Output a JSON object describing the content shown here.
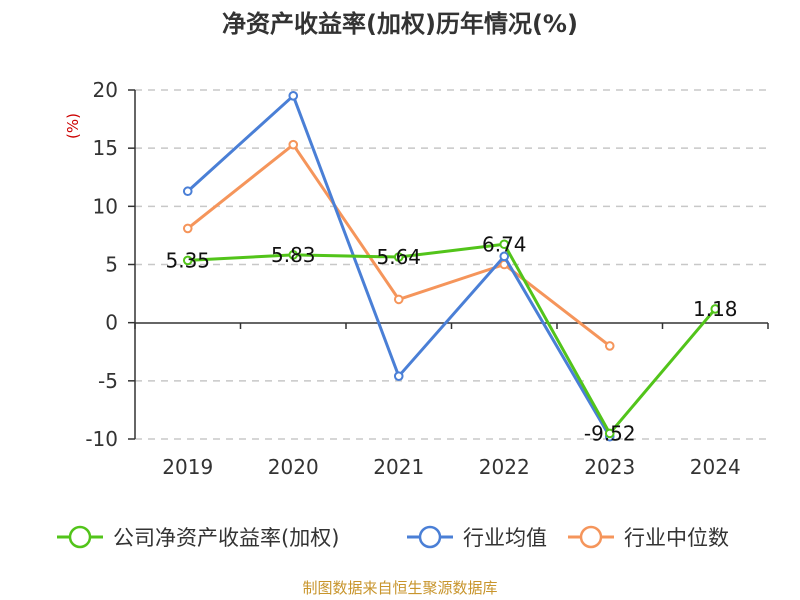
{
  "chart_data": {
    "type": "line",
    "title": "净资产收益率(加权)历年情况(%)",
    "ylabel": "(%)",
    "xlabel": "",
    "categories": [
      "2019",
      "2020",
      "2021",
      "2022",
      "2023",
      "2024"
    ],
    "ylim": [
      -10,
      20
    ],
    "yticks": [
      20,
      15,
      10,
      5,
      0,
      -5,
      -10
    ],
    "grid": true,
    "legend_position": "bottom",
    "series": [
      {
        "name": "公司净资产收益率(加权)",
        "color": "#52c41a",
        "values": [
          5.35,
          5.83,
          5.64,
          6.74,
          -9.52,
          1.18
        ],
        "labels": [
          "5.35",
          "5.83",
          "5.64",
          "6.74",
          "-9.52",
          "1.18"
        ]
      },
      {
        "name": "行业均值",
        "color": "#4a7fd6",
        "values": [
          11.3,
          19.5,
          -4.6,
          5.7,
          -9.8,
          null
        ]
      },
      {
        "name": "行业中位数",
        "color": "#f5955b",
        "values": [
          8.1,
          15.3,
          2.0,
          5.0,
          -2.0,
          null
        ]
      }
    ],
    "source": "制图数据来自恒生聚源数据库"
  }
}
